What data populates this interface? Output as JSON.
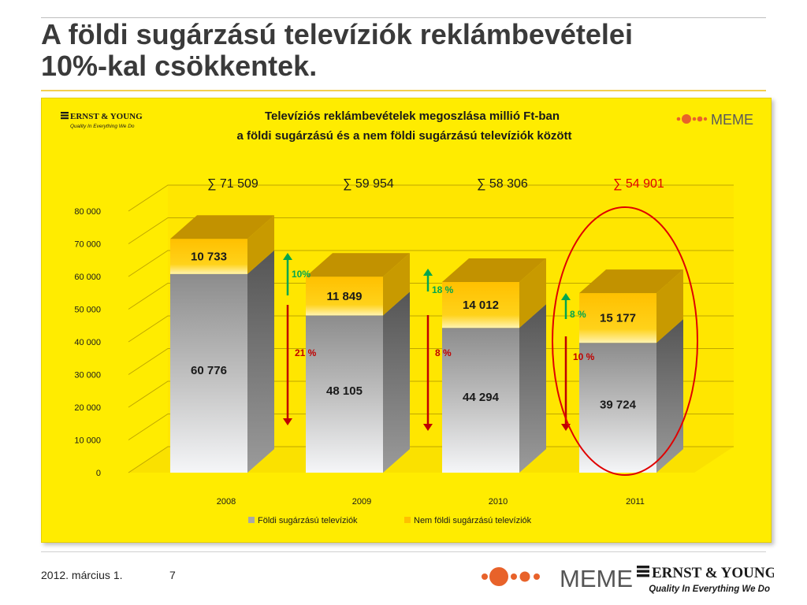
{
  "slide": {
    "title_lines": [
      "A földi sugárzású televíziók reklámbevételei",
      "10%-kal csökkentek."
    ],
    "date": "2012. március 1.",
    "page_number": "7"
  },
  "logos": {
    "meme_text": "MEME",
    "ey_name": "ERNST & YOUNG",
    "ey_tagline": "Quality In Everything We Do"
  },
  "chart_data": {
    "type": "bar",
    "stacked": true,
    "title_lines": [
      "Televíziós reklámbevételek megoszlása millió Ft-ban",
      "a földi sugárzású és a nem földi sugárzású televíziók között"
    ],
    "categories": [
      "2008",
      "2009",
      "2010",
      "2011"
    ],
    "ylim": [
      0,
      80000
    ],
    "yticks": [
      "0",
      "10 000",
      "20 000",
      "30 000",
      "40 000",
      "50 000",
      "60 000",
      "70 000",
      "80 000"
    ],
    "grid": true,
    "legend_position": "bottom",
    "series": [
      {
        "name": "Földi sugárzású televíziók",
        "values": [
          60776,
          48105,
          44294,
          39724
        ],
        "labels": [
          "60 776",
          "48 105",
          "44 294",
          "39 724"
        ],
        "color": "#a8a8a8"
      },
      {
        "name": "Nem földi sugárzású televíziók",
        "values": [
          10733,
          11849,
          14012,
          15177
        ],
        "labels": [
          "10 733",
          "11 849",
          "14 012",
          "15 177"
        ],
        "color": "#ffc000"
      }
    ],
    "totals": [
      "∑  71 509",
      "∑  59 954",
      "∑  58 306",
      "∑  54 901"
    ],
    "annotations": [
      {
        "after_category": "2008",
        "up": "10%",
        "down": "21 %"
      },
      {
        "after_category": "2009",
        "up": "18 %",
        "down": "8 %"
      },
      {
        "after_category": "2010",
        "up": "8 %",
        "down": "10 %"
      }
    ],
    "highlight_category": "2011",
    "colors": {
      "up": "#00a650",
      "down": "#c00000",
      "highlight": "#e00000"
    }
  }
}
